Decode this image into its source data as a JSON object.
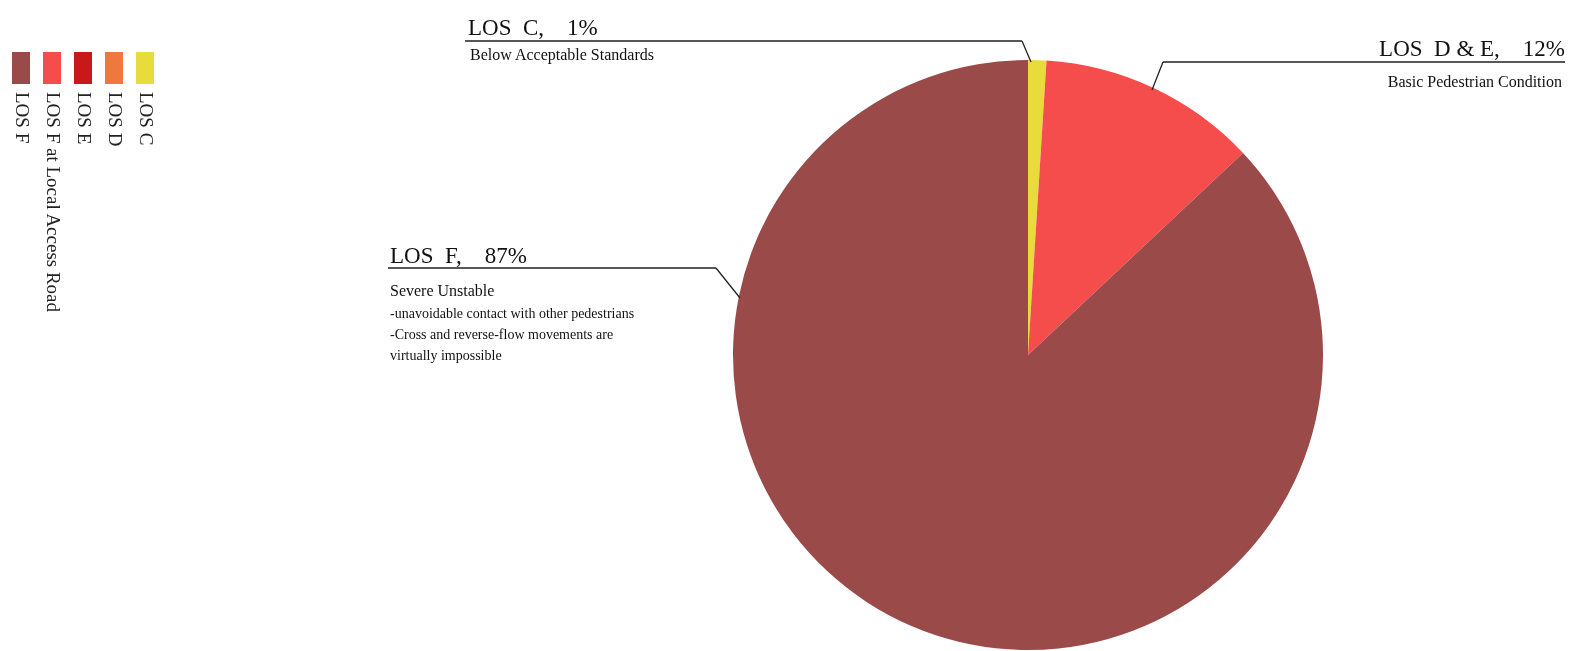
{
  "chart_data": {
    "type": "pie",
    "categories": [
      "LOS C",
      "LOS D",
      "LOS E",
      "LOS F at Local Access Road",
      "LOS F"
    ],
    "values": [
      1,
      null,
      null,
      12,
      87
    ],
    "colors": [
      "#e8dc3c",
      "#f07840",
      "#c81818",
      "#f54c4c",
      "#9b4a4a"
    ],
    "value_labels": [
      "LOS  C,    1%",
      null,
      null,
      "LOS  D & E,    12%",
      "LOS  F,    87%"
    ],
    "annotations": [
      "Below Acceptable Standards",
      "Basic Pedestrian Condition",
      "Severe Unstable",
      "-unavoidable contact with other pedestrians",
      "-Cross and reverse-flow movements are",
      "virtually impossible"
    ],
    "legend": "left"
  }
}
